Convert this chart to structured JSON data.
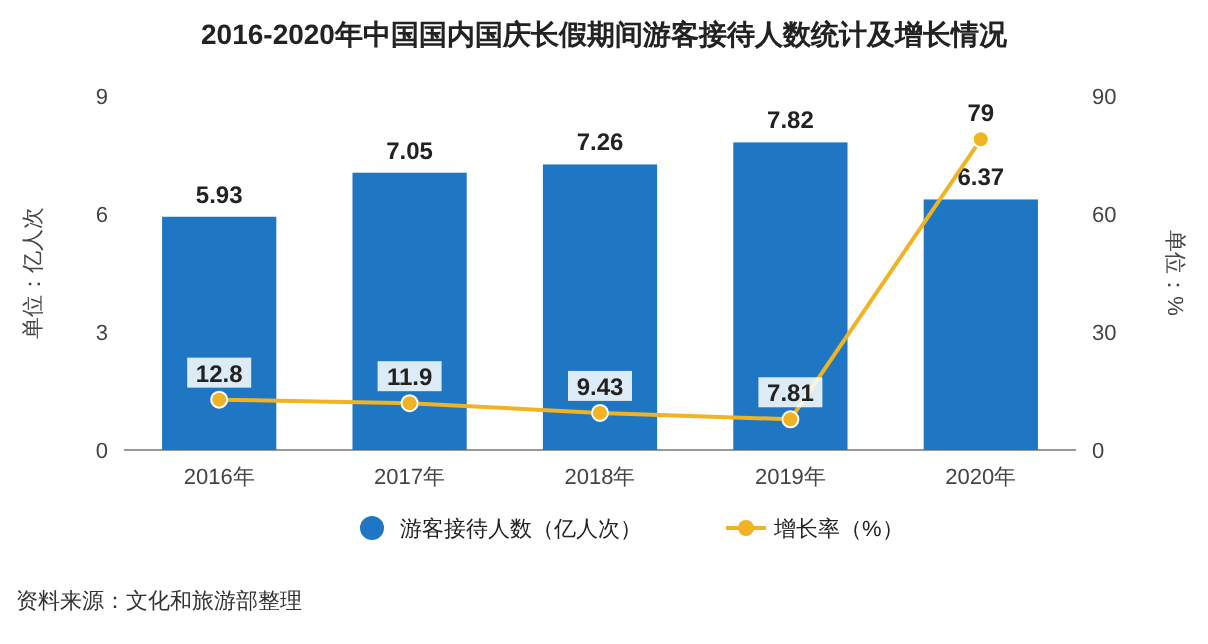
{
  "chart_data": {
    "type": "bar",
    "title": "2016-2020年中国国内国庆长假期间游客接待人数统计及增长情况",
    "ylabel": "单位：亿人次",
    "y2label": "单位：%",
    "categories": [
      "2016年",
      "2017年",
      "2018年",
      "2019年",
      "2020年"
    ],
    "series": [
      {
        "name": "游客接待人数（亿人次）",
        "color": "#1f77c4",
        "values": [
          5.93,
          7.05,
          7.26,
          7.82,
          6.37
        ]
      },
      {
        "name": "增长率（%）",
        "type": "line",
        "axis": "y2",
        "color": "#f0b323",
        "values": [
          12.8,
          11.9,
          9.43,
          7.81,
          79
        ]
      }
    ],
    "ylim": [
      0,
      9
    ],
    "yticks": [
      0,
      3,
      6,
      9
    ],
    "y2lim": [
      0,
      90
    ],
    "y2ticks": [
      0,
      30,
      60,
      90
    ],
    "data_labels": true,
    "legend": "bottom",
    "marker": "circle",
    "annotations": [
      "资料来源：文化和旅游部整理"
    ]
  }
}
